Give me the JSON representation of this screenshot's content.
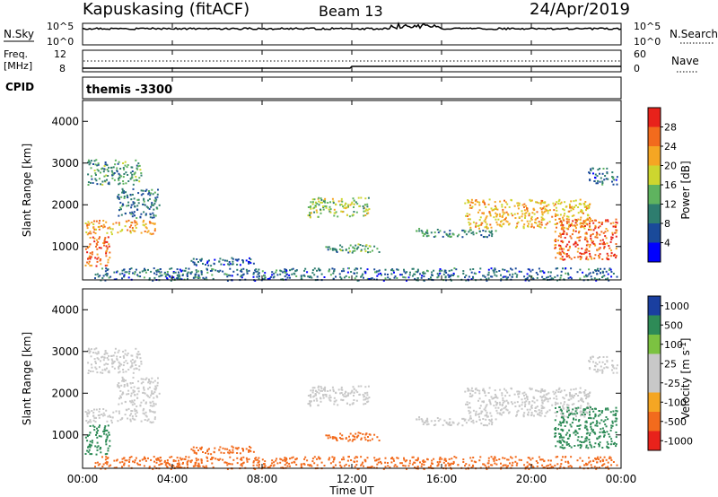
{
  "header": {
    "station": "Kapuskasing (fitACF)",
    "beam": "Beam 13",
    "date": "24/Apr/2019"
  },
  "top_panels": {
    "nsky_label": "N.Sky",
    "nsky_ticks": [
      "10^5",
      "10^0"
    ],
    "nsearch_label": "N.Search",
    "nsearch_ticks": [
      "10^5",
      "10^0"
    ],
    "freq_label_line1": "Freq.",
    "freq_label_line2": "[MHz]",
    "freq_ticks": [
      "12",
      "8"
    ],
    "nave_label": "Nave",
    "nave_ticks": [
      "60",
      "0"
    ],
    "cpid_label": "CPID",
    "cpid_value": "themis -3300"
  },
  "colors": {
    "power_scale": [
      "#0000ff",
      "#1a4a9a",
      "#2e7d6f",
      "#5fb35f",
      "#cdd62f",
      "#f5a623",
      "#f26b1d",
      "#e8221b"
    ],
    "velocity_scale": [
      "#e8221b",
      "#f26b1d",
      "#f5a623",
      "#c8c8c8",
      "#c8c8c8",
      "#7cc241",
      "#2e8b57",
      "#1a3fa0"
    ]
  },
  "chart_data": [
    {
      "type": "heatmap",
      "name": "power",
      "ylabel": "Slant Range [km]",
      "yticks": [
        1000,
        2000,
        3000,
        4000
      ],
      "ylim": [
        200,
        4500
      ],
      "xlim": [
        0,
        24
      ],
      "colorbar_label": "Power [dB]",
      "colorbar_ticks": [
        4,
        8,
        12,
        16,
        20,
        24,
        28
      ],
      "colorbar_range": [
        0,
        32
      ],
      "regions": [
        {
          "t": [
            0.1,
            1.2
          ],
          "r": [
            550,
            1250
          ],
          "v": 26
        },
        {
          "t": [
            0.1,
            3.2
          ],
          "r": [
            1300,
            1650
          ],
          "v": 23
        },
        {
          "t": [
            0.2,
            2.6
          ],
          "r": [
            2500,
            3100
          ],
          "v": 12
        },
        {
          "t": [
            1.5,
            3.4
          ],
          "r": [
            1700,
            2400
          ],
          "v": 9
        },
        {
          "t": [
            4.8,
            7.6
          ],
          "r": [
            550,
            750
          ],
          "v": 7
        },
        {
          "t": [
            10.0,
            12.8
          ],
          "r": [
            1700,
            2200
          ],
          "v": 16
        },
        {
          "t": [
            10.8,
            13.2
          ],
          "r": [
            850,
            1100
          ],
          "v": 12
        },
        {
          "t": [
            14.8,
            18.4
          ],
          "r": [
            1250,
            1450
          ],
          "v": 10
        },
        {
          "t": [
            17.0,
            22.6
          ],
          "r": [
            1450,
            2150
          ],
          "v": 21
        },
        {
          "t": [
            21.0,
            23.8
          ],
          "r": [
            700,
            1700
          ],
          "v": 26
        },
        {
          "t": [
            22.5,
            23.8
          ],
          "r": [
            2500,
            2900
          ],
          "v": 8
        },
        {
          "t": [
            0.5,
            23.8
          ],
          "r": [
            200,
            500
          ],
          "v": 8
        }
      ]
    },
    {
      "type": "heatmap",
      "name": "velocity",
      "ylabel": "Slant Range [km]",
      "yticks": [
        1000,
        2000,
        3000,
        4000
      ],
      "ylim": [
        200,
        4500
      ],
      "xlim": [
        0,
        24
      ],
      "xticks": [
        "00:00",
        "04:00",
        "08:00",
        "12:00",
        "16:00",
        "20:00",
        "00:00"
      ],
      "xlabel": "Time UT",
      "colorbar_label": "Velocity [m s",
      "colorbar_label_sup": "-1",
      "colorbar_label_end": "]",
      "colorbar_ticks": [
        "-1000",
        "-500",
        "-100",
        "-25",
        "25",
        "100",
        "500",
        "1000"
      ],
      "regions": [
        {
          "t": [
            0.1,
            1.2
          ],
          "r": [
            550,
            1250
          ],
          "v": 120
        },
        {
          "t": [
            0.1,
            3.2
          ],
          "r": [
            1300,
            1650
          ],
          "v": 0
        },
        {
          "t": [
            0.2,
            2.6
          ],
          "r": [
            2500,
            3100
          ],
          "v": 0
        },
        {
          "t": [
            1.5,
            3.4
          ],
          "r": [
            1700,
            2400
          ],
          "v": 0
        },
        {
          "t": [
            4.8,
            7.6
          ],
          "r": [
            550,
            750
          ],
          "v": -150
        },
        {
          "t": [
            10.0,
            12.8
          ],
          "r": [
            1700,
            2200
          ],
          "v": 0
        },
        {
          "t": [
            10.8,
            13.2
          ],
          "r": [
            850,
            1100
          ],
          "v": -150
        },
        {
          "t": [
            14.8,
            18.4
          ],
          "r": [
            1250,
            1450
          ],
          "v": 0
        },
        {
          "t": [
            17.0,
            22.6
          ],
          "r": [
            1450,
            2150
          ],
          "v": 0
        },
        {
          "t": [
            21.0,
            23.8
          ],
          "r": [
            700,
            1700
          ],
          "v": 120
        },
        {
          "t": [
            22.5,
            23.8
          ],
          "r": [
            2500,
            2900
          ],
          "v": 0
        },
        {
          "t": [
            0.5,
            23.8
          ],
          "r": [
            200,
            500
          ],
          "v": -150
        }
      ]
    }
  ]
}
